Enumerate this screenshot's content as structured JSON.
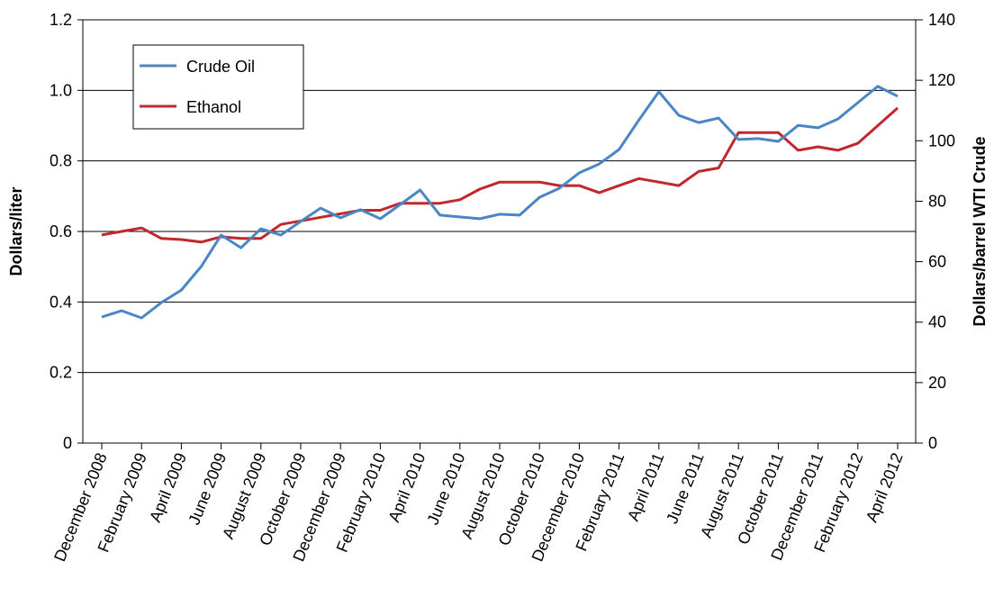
{
  "chart_data": {
    "type": "line",
    "y_label": "Dollars/liter",
    "y2_label": "Dollars/barrel WTI Crude",
    "categories": [
      "December 2008",
      null,
      "February 2009",
      null,
      "April 2009",
      null,
      "June 2009",
      null,
      "August 2009",
      null,
      "October 2009",
      null,
      "December 2009",
      null,
      "February 2010",
      null,
      "April 2010",
      null,
      "June 2010",
      null,
      "August 2010",
      null,
      "October 2010",
      null,
      "December 2010",
      null,
      "February 2011",
      null,
      "April 2011",
      null,
      "June 2011",
      null,
      "August 2011",
      null,
      "October 2011",
      null,
      "December 2011",
      null,
      "February 2012",
      null,
      "April 2012"
    ],
    "series": [
      {
        "name": "Crude Oil",
        "color": "#4a86c5",
        "axis": "y2",
        "values": [
          41.7,
          43.8,
          41.4,
          46.5,
          50.6,
          58.4,
          68.8,
          64.6,
          70.9,
          68.8,
          73.3,
          77.7,
          74.5,
          77.2,
          74.2,
          78.9,
          83.7,
          75.4,
          74.8,
          74.2,
          75.7,
          75.4,
          81.3,
          84.3,
          89.4,
          92.3,
          97.1,
          106.9,
          116.2,
          108.4,
          106.0,
          107.5,
          100.4,
          100.7,
          99.8,
          105.1,
          104.3,
          107.2,
          112.6,
          118.0,
          114.7
        ]
      },
      {
        "name": "Ethanol",
        "color": "#c0282d",
        "values": [
          0.59,
          0.6,
          0.61,
          0.58,
          0.577,
          0.57,
          0.585,
          0.58,
          0.58,
          0.62,
          0.63,
          0.64,
          0.65,
          0.66,
          0.66,
          0.68,
          0.68,
          0.68,
          0.69,
          0.72,
          0.74,
          0.74,
          0.74,
          0.73,
          0.73,
          0.71,
          0.73,
          0.75,
          0.74,
          0.73,
          0.77,
          0.78,
          0.88,
          0.88,
          0.88,
          0.83,
          0.84,
          0.83,
          0.85,
          0.9,
          0.95
        ]
      }
    ],
    "ylim": [
      0,
      1.2
    ],
    "yticks": [
      0,
      0.2,
      0.4,
      0.6,
      0.8,
      {
        "value": 1,
        "label": "1.0"
      },
      1.2
    ],
    "y2lim": [
      0,
      140
    ],
    "y2ticks": [
      0,
      20,
      40,
      60,
      80,
      100,
      120,
      140
    ],
    "grid": true,
    "legend": "upper-left"
  }
}
